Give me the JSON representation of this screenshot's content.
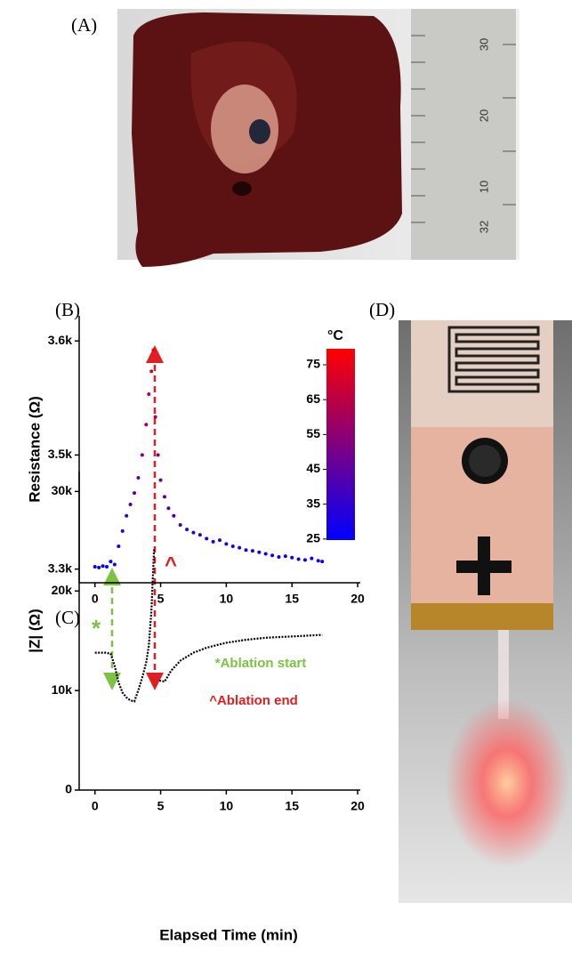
{
  "panel_labels": [
    "(A)",
    "(B)",
    "(C)",
    "(D)"
  ],
  "ruler_labels": [
    "30",
    "20",
    "10",
    "32"
  ],
  "chart_data": [
    {
      "type": "scatter",
      "ylabel": "Resistance (Ω)",
      "xlim": [
        -1.2,
        20.2
      ],
      "xticks": [
        0,
        5,
        10,
        15,
        20
      ],
      "ylim": [
        3282,
        3633
      ],
      "yticks": [
        {
          "value": 3300,
          "label": "3.3k"
        },
        {
          "value": 3450,
          "label": "3.5k"
        },
        {
          "value": 3600,
          "label": "3.6k"
        }
      ],
      "x": [
        0,
        0.3,
        0.6,
        0.9,
        1.2,
        1.5,
        1.8,
        2.1,
        2.4,
        2.7,
        3.0,
        3.3,
        3.6,
        3.9,
        4.1,
        4.3,
        4.45,
        4.6,
        4.8,
        5.0,
        5.3,
        5.6,
        6.0,
        6.5,
        7.0,
        7.5,
        8,
        8.5,
        9,
        9.5,
        10,
        10.5,
        11,
        11.5,
        12,
        12.5,
        13,
        13.5,
        14,
        14.5,
        15,
        15.5,
        16,
        16.5,
        17,
        17.3
      ],
      "values": [
        3303,
        3302,
        3304,
        3303,
        3310,
        3306,
        3330,
        3350,
        3370,
        3385,
        3400,
        3420,
        3450,
        3490,
        3530,
        3560,
        3588,
        3500,
        3450,
        3417,
        3395,
        3380,
        3370,
        3358,
        3352,
        3348,
        3345,
        3340,
        3336,
        3338,
        3333,
        3330,
        3328,
        3325,
        3324,
        3322,
        3320,
        3318,
        3316,
        3317,
        3315,
        3313,
        3312,
        3314,
        3311,
        3310
      ],
      "temperatures": [
        25,
        25,
        25,
        25,
        26,
        27,
        30,
        33,
        37,
        40,
        43,
        47,
        52,
        58,
        64,
        70,
        78,
        62,
        54,
        48,
        44,
        41,
        39,
        37,
        35,
        34,
        33,
        32,
        31,
        31,
        30,
        30,
        29,
        29,
        28,
        28,
        28,
        27,
        27,
        27,
        27,
        26,
        26,
        26,
        26,
        26
      ],
      "colorbar": {
        "label": "°C",
        "lim": [
          24.7,
          79.6
        ],
        "ticks": [
          25,
          35,
          45,
          55,
          65,
          75
        ],
        "colors": [
          "#0000ff",
          "#ff0000"
        ]
      },
      "annotations": [
        {
          "text": "^",
          "color": "#e02020"
        }
      ]
    },
    {
      "type": "line",
      "ylabel": "|Z| (Ω)",
      "xlabel": "Elapsed Time (min)",
      "color": "#000000",
      "xlim": [
        -1.2,
        20.2
      ],
      "xticks": [
        0,
        5,
        10,
        15,
        20
      ],
      "ylim": [
        0,
        32000
      ],
      "yticks": [
        0,
        {
          "value": 10000,
          "label": "10k"
        },
        {
          "value": 20000,
          "label": "20k"
        },
        {
          "value": 30000,
          "label": "30k"
        }
      ],
      "x": [
        0,
        0.4,
        0.8,
        1.2,
        1.5,
        1.8,
        2.1,
        2.4,
        2.7,
        3.0,
        3.3,
        3.6,
        3.9,
        4.1,
        4.3,
        4.5,
        4.7,
        4.9,
        5.3,
        5.8,
        6.5,
        7.5,
        8.5,
        10,
        11.5,
        13,
        14.5,
        16,
        17.3
      ],
      "values": [
        13800,
        13800,
        13800,
        13700,
        12500,
        10800,
        9800,
        9300,
        9000,
        8900,
        10000,
        11300,
        12800,
        14500,
        18000,
        24200,
        null,
        11000,
        10900,
        12000,
        13000,
        13800,
        14300,
        14800,
        15100,
        15300,
        15400,
        15500,
        15600
      ],
      "annotations": [
        {
          "text": "*",
          "color": "#7dc242"
        },
        {
          "text": "*Ablation start",
          "color": "#7dc242"
        },
        {
          "text": "^Ablation end",
          "color": "#e02020"
        }
      ]
    }
  ]
}
